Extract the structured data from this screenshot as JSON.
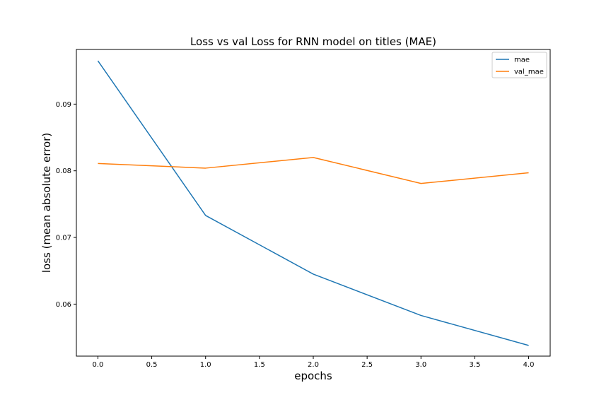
{
  "chart_data": {
    "type": "line",
    "title": "Loss vs val Loss for RNN model on titles (MAE)",
    "xlabel": "epochs",
    "ylabel": "loss (mean absolute error)",
    "x": [
      0,
      1,
      2,
      3,
      4
    ],
    "series": [
      {
        "name": "mae",
        "color": "#1f77b4",
        "values": [
          0.0965,
          0.0733,
          0.0645,
          0.0583,
          0.0538
        ]
      },
      {
        "name": "val_mae",
        "color": "#ff7f0e",
        "values": [
          0.0811,
          0.0804,
          0.082,
          0.0781,
          0.0797
        ]
      }
    ],
    "xlim": [
      -0.2,
      4.2
    ],
    "ylim": [
      0.0522,
      0.0982
    ],
    "xticks": [
      "0.0",
      "0.5",
      "1.0",
      "1.5",
      "2.0",
      "2.5",
      "3.0",
      "3.5",
      "4.0"
    ],
    "yticks": [
      "0.06",
      "0.07",
      "0.08",
      "0.09"
    ],
    "legend_position": "top-right",
    "grid": false
  }
}
